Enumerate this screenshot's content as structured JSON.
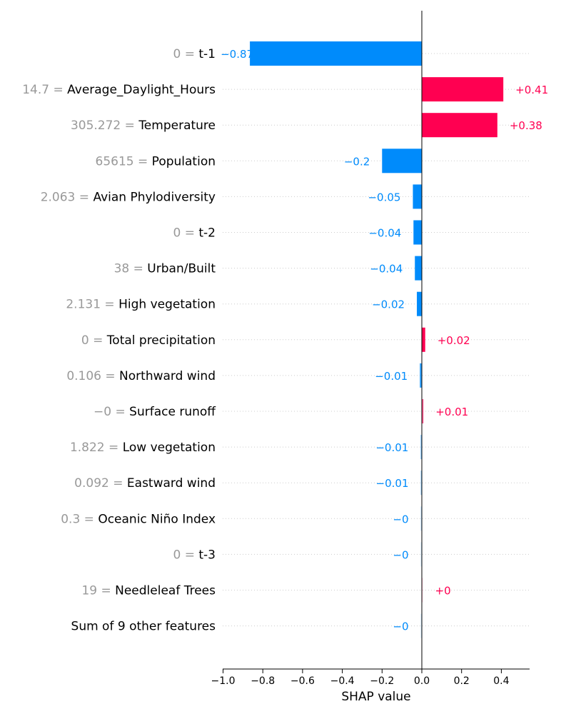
{
  "chart_data": {
    "type": "bar",
    "xlabel": "SHAP value",
    "xlim": [
      -1.0,
      0.55
    ],
    "xticks": [
      {
        "value": -1.0,
        "label": "−1.0"
      },
      {
        "value": -0.8,
        "label": "−0.8"
      },
      {
        "value": -0.6,
        "label": "−0.6"
      },
      {
        "value": -0.4,
        "label": "−0.4"
      },
      {
        "value": -0.2,
        "label": "−0.2"
      },
      {
        "value": 0.0,
        "label": "0.0"
      },
      {
        "value": 0.2,
        "label": "0.2"
      },
      {
        "value": 0.4,
        "label": "0.4"
      }
    ],
    "grid": "horizontal-dotted",
    "colors": {
      "positive": "#ff0051",
      "negative": "#008bfb"
    },
    "features": [
      {
        "value_text": "0",
        "name": "t-1",
        "shap": -0.865,
        "shap_label": "−0.87"
      },
      {
        "value_text": "14.7",
        "name": "Average_Daylight_Hours",
        "shap": 0.41,
        "shap_label": "+0.41"
      },
      {
        "value_text": "305.272",
        "name": "Temperature",
        "shap": 0.38,
        "shap_label": "+0.38"
      },
      {
        "value_text": "65615",
        "name": "Population",
        "shap": -0.2,
        "shap_label": "−0.2"
      },
      {
        "value_text": "2.063",
        "name": "Avian Phylodiversity",
        "shap": -0.045,
        "shap_label": "−0.05"
      },
      {
        "value_text": "0",
        "name": "t-2",
        "shap": -0.042,
        "shap_label": "−0.04"
      },
      {
        "value_text": "38",
        "name": "Urban/Built",
        "shap": -0.035,
        "shap_label": "−0.04"
      },
      {
        "value_text": "2.131",
        "name": "High vegetation",
        "shap": -0.025,
        "shap_label": "−0.02"
      },
      {
        "value_text": "0",
        "name": "Total precipitation",
        "shap": 0.017,
        "shap_label": "+0.02"
      },
      {
        "value_text": "0.106",
        "name": "Northward wind",
        "shap": -0.01,
        "shap_label": "−0.01"
      },
      {
        "value_text": "−0",
        "name": "Surface runoff",
        "shap": 0.008,
        "shap_label": "+0.01"
      },
      {
        "value_text": "1.822",
        "name": "Low vegetation",
        "shap": -0.006,
        "shap_label": "−0.01"
      },
      {
        "value_text": "0.092",
        "name": "Eastward wind",
        "shap": -0.005,
        "shap_label": "−0.01"
      },
      {
        "value_text": "0.3",
        "name": "Oceanic Niño Index",
        "shap": -0.003,
        "shap_label": "−0"
      },
      {
        "value_text": "0",
        "name": "t-3",
        "shap": -0.002,
        "shap_label": "−0"
      },
      {
        "value_text": "19",
        "name": "Needleleaf Trees",
        "shap": 0.002,
        "shap_label": "+0"
      },
      {
        "value_text": "",
        "name": "Sum of 9 other features",
        "shap": -0.002,
        "shap_label": "−0"
      }
    ]
  }
}
